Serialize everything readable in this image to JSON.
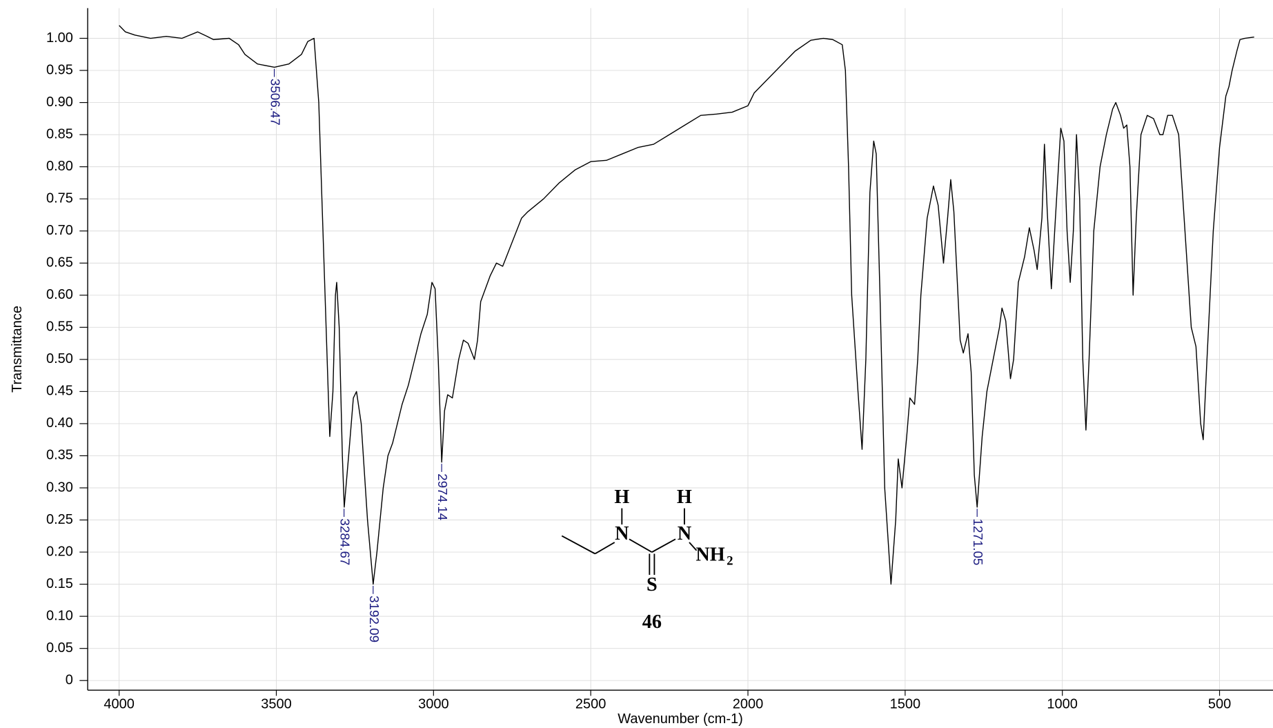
{
  "chart_data": {
    "type": "line",
    "xlabel": "Wavenumber (cm-1)",
    "ylabel": "Transmittance",
    "color": "#000000",
    "grid": true,
    "xlim": [
      4100,
      330
    ],
    "ylim": [
      -0.015,
      1.047
    ],
    "xticks": [
      4000,
      3500,
      3000,
      2500,
      2000,
      1500,
      1000,
      500
    ],
    "yticks": [
      0,
      0.05,
      {
        "value": 0.1,
        "label": "0.10"
      },
      0.15,
      {
        "value": 0.2,
        "label": "0.20"
      },
      0.25,
      {
        "value": 0.3,
        "label": "0.30"
      },
      0.35,
      {
        "value": 0.4,
        "label": "0.40"
      },
      0.45,
      {
        "value": 0.5,
        "label": "0.50"
      },
      0.55,
      {
        "value": 0.6,
        "label": "0.60"
      },
      0.65,
      {
        "value": 0.7,
        "label": "0.70"
      },
      0.75,
      {
        "value": 0.8,
        "label": "0.80"
      },
      0.85,
      {
        "value": 0.9,
        "label": "0.90"
      },
      0.95,
      {
        "value": 1,
        "label": "1.00"
      }
    ],
    "x": [
      4000,
      3980,
      3950,
      3900,
      3850,
      3800,
      3750,
      3720,
      3700,
      3650,
      3620,
      3600,
      3560,
      3506,
      3460,
      3420,
      3400,
      3380,
      3365,
      3355,
      3345,
      3335,
      3330,
      3320,
      3312,
      3308,
      3300,
      3290,
      3284,
      3270,
      3255,
      3245,
      3230,
      3210,
      3192,
      3180,
      3160,
      3145,
      3130,
      3100,
      3080,
      3060,
      3040,
      3020,
      3005,
      2995,
      2985,
      2974,
      2965,
      2955,
      2940,
      2920,
      2905,
      2890,
      2870,
      2860,
      2850,
      2820,
      2800,
      2780,
      2760,
      2720,
      2700,
      2650,
      2600,
      2550,
      2500,
      2450,
      2400,
      2350,
      2300,
      2250,
      2200,
      2150,
      2100,
      2050,
      2000,
      1980,
      1950,
      1900,
      1850,
      1800,
      1760,
      1730,
      1700,
      1690,
      1680,
      1670,
      1650,
      1637,
      1625,
      1612,
      1600,
      1592,
      1580,
      1565,
      1545,
      1530,
      1522,
      1510,
      1495,
      1485,
      1470,
      1460,
      1450,
      1430,
      1410,
      1395,
      1378,
      1365,
      1355,
      1345,
      1325,
      1315,
      1300,
      1290,
      1280,
      1271,
      1255,
      1240,
      1220,
      1200,
      1192,
      1180,
      1165,
      1155,
      1140,
      1120,
      1105,
      1090,
      1080,
      1065,
      1057,
      1048,
      1035,
      1022,
      1005,
      995,
      985,
      975,
      965,
      955,
      945,
      935,
      925,
      915,
      900,
      880,
      860,
      840,
      830,
      815,
      805,
      795,
      785,
      775,
      765,
      750,
      730,
      710,
      690,
      680,
      665,
      650,
      630,
      610,
      590,
      575,
      560,
      552,
      540,
      520,
      500,
      480,
      470,
      460,
      445,
      435,
      420,
      390
    ],
    "values": [
      1.02,
      1.01,
      1.005,
      1.0,
      1.003,
      1.0,
      1.01,
      1.003,
      0.998,
      1.0,
      0.99,
      0.975,
      0.96,
      0.955,
      0.96,
      0.975,
      0.995,
      1.0,
      0.9,
      0.75,
      0.6,
      0.45,
      0.38,
      0.45,
      0.6,
      0.62,
      0.55,
      0.35,
      0.27,
      0.35,
      0.44,
      0.45,
      0.4,
      0.25,
      0.15,
      0.2,
      0.3,
      0.35,
      0.37,
      0.43,
      0.46,
      0.5,
      0.54,
      0.57,
      0.62,
      0.61,
      0.5,
      0.34,
      0.42,
      0.445,
      0.44,
      0.5,
      0.53,
      0.525,
      0.5,
      0.53,
      0.59,
      0.63,
      0.65,
      0.645,
      0.67,
      0.72,
      0.73,
      0.75,
      0.775,
      0.795,
      0.808,
      0.81,
      0.82,
      0.83,
      0.835,
      0.85,
      0.865,
      0.88,
      0.882,
      0.885,
      0.895,
      0.915,
      0.93,
      0.955,
      0.98,
      0.997,
      1.0,
      0.998,
      0.99,
      0.95,
      0.8,
      0.6,
      0.45,
      0.36,
      0.5,
      0.76,
      0.84,
      0.82,
      0.6,
      0.3,
      0.15,
      0.25,
      0.345,
      0.3,
      0.38,
      0.44,
      0.43,
      0.5,
      0.6,
      0.72,
      0.77,
      0.74,
      0.65,
      0.72,
      0.78,
      0.73,
      0.53,
      0.51,
      0.54,
      0.48,
      0.32,
      0.27,
      0.38,
      0.45,
      0.5,
      0.55,
      0.58,
      0.56,
      0.47,
      0.5,
      0.62,
      0.66,
      0.705,
      0.67,
      0.64,
      0.72,
      0.835,
      0.73,
      0.61,
      0.72,
      0.86,
      0.84,
      0.7,
      0.62,
      0.7,
      0.85,
      0.75,
      0.5,
      0.39,
      0.5,
      0.7,
      0.8,
      0.85,
      0.89,
      0.9,
      0.88,
      0.86,
      0.865,
      0.8,
      0.6,
      0.72,
      0.85,
      0.88,
      0.875,
      0.85,
      0.85,
      0.88,
      0.88,
      0.85,
      0.7,
      0.55,
      0.52,
      0.4,
      0.375,
      0.5,
      0.7,
      0.83,
      0.91,
      0.925,
      0.95,
      0.98,
      0.998,
      1.0,
      1.002
    ],
    "annotations": [
      {
        "x": 3506.47,
        "y": 0.955
      },
      {
        "x": 3284.67,
        "y": 0.27
      },
      {
        "x": 3192.09,
        "y": 0.15
      },
      {
        "x": 2974.14,
        "y": 0.34
      },
      {
        "x": 1271.05,
        "y": 0.27
      }
    ]
  },
  "structure": {
    "atoms": [
      "H",
      "N",
      "H",
      "N",
      "NH",
      "S"
    ],
    "subscript": "2",
    "compound_number": "46"
  }
}
